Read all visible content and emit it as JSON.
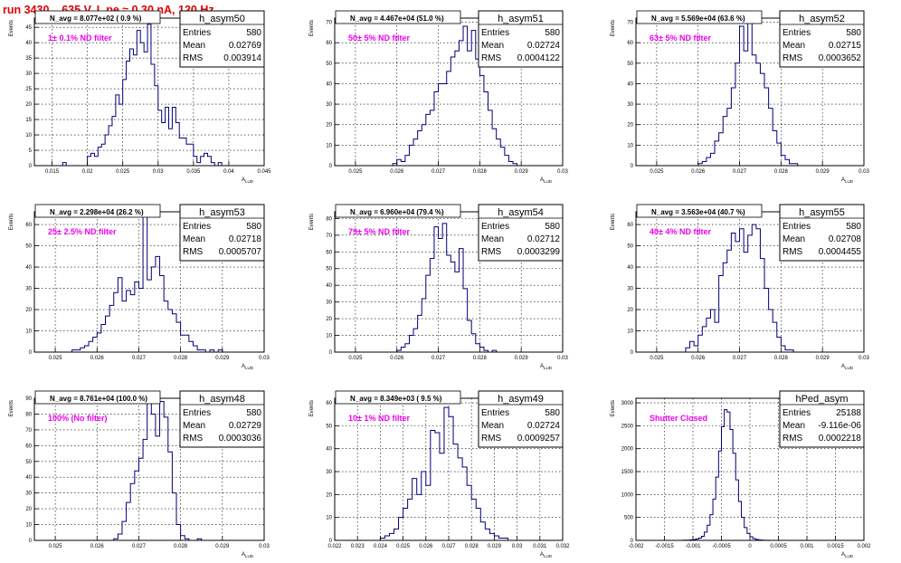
{
  "run_title": "run 3430,   635 V, I_pe ≈ 0.30 nA, 120 Hz",
  "common": {
    "ylabel": "Events",
    "xlabel": "A",
    "xlabel_sub": "LUD",
    "stat_keys": [
      "Entries",
      "Mean",
      "RMS"
    ],
    "hist_color": "#00007a",
    "annotation_color": "#ee00ee",
    "title_color": "#e00000"
  },
  "chart_data": [
    {
      "type": "bar",
      "name": "h_asym50",
      "navg": "N_avg = 8.077e+02 ( 0.9 %)",
      "annotation": "1± 0.1% ND filter",
      "stats": {
        "entries": "580",
        "mean": "0.02769",
        "rms": "0.003914"
      },
      "xlim": [
        0.0125,
        0.045
      ],
      "xticks": [
        0.015,
        0.02,
        0.025,
        0.03,
        0.035,
        0.04,
        0.045
      ],
      "xtick_labels": [
        "0.015",
        "0.02",
        "0.025",
        "0.03",
        "0.035",
        "0.04",
        "0.045"
      ],
      "ylim": [
        0,
        48
      ],
      "yticks": [
        0,
        5,
        10,
        15,
        20,
        25,
        30,
        35,
        40,
        45
      ],
      "bin_edges_start": 0.0165,
      "bin_width": 0.0005,
      "counts": [
        1,
        0,
        0,
        0,
        0,
        0,
        0,
        3,
        4,
        3,
        6,
        7,
        10,
        13,
        16,
        23,
        20,
        28,
        34,
        38,
        36,
        44,
        40,
        37,
        46,
        33,
        26,
        18,
        14,
        19,
        12,
        19,
        14,
        9,
        9,
        7,
        7,
        3,
        1,
        3,
        4,
        3,
        1,
        0,
        1,
        0
      ]
    },
    {
      "type": "bar",
      "name": "h_asym51",
      "navg": "N_avg = 4.467e+04 (51.0 %)",
      "annotation": "50± 5% ND filter",
      "stats": {
        "entries": "580",
        "mean": "0.02724",
        "rms": "0.0004122"
      },
      "xlim": [
        0.0245,
        0.03
      ],
      "xticks": [
        0.025,
        0.026,
        0.027,
        0.028,
        0.029,
        0.03
      ],
      "xtick_labels": [
        "0.025",
        "0.026",
        "0.027",
        "0.028",
        "0.029",
        "0.03"
      ],
      "ylim": [
        0,
        72
      ],
      "yticks": [
        0,
        10,
        20,
        30,
        40,
        50,
        60,
        70
      ],
      "bin_edges_start": 0.0259,
      "bin_width": 0.0001,
      "counts": [
        1,
        3,
        2,
        5,
        10,
        13,
        17,
        20,
        25,
        27,
        36,
        40,
        40,
        46,
        53,
        56,
        61,
        68,
        56,
        66,
        52,
        44,
        36,
        27,
        18,
        13,
        9,
        5,
        2,
        1,
        0
      ]
    },
    {
      "type": "bar",
      "name": "h_asym52",
      "navg": "N_avg = 5.569e+04 (63.6 %)",
      "annotation": "63± 5% ND filter",
      "stats": {
        "entries": "580",
        "mean": "0.02715",
        "rms": "0.0003652"
      },
      "xlim": [
        0.0245,
        0.03
      ],
      "xticks": [
        0.025,
        0.026,
        0.027,
        0.028,
        0.029,
        0.03
      ],
      "xtick_labels": [
        "0.025",
        "0.026",
        "0.027",
        "0.028",
        "0.029",
        "0.03"
      ],
      "ylim": [
        0,
        72
      ],
      "yticks": [
        0,
        10,
        20,
        30,
        40,
        50,
        60,
        70
      ],
      "bin_edges_start": 0.026,
      "bin_width": 0.0001,
      "counts": [
        1,
        2,
        4,
        6,
        12,
        16,
        24,
        28,
        38,
        50,
        68,
        56,
        70,
        54,
        50,
        45,
        38,
        28,
        17,
        11,
        5,
        3,
        1,
        1,
        0,
        0
      ]
    },
    {
      "type": "bar",
      "name": "h_asym53",
      "navg": "N_avg = 2.298e+04 (26.2 %)",
      "annotation": "25± 2.5% ND filter",
      "stats": {
        "entries": "580",
        "mean": "0.02718",
        "rms": "0.0005707"
      },
      "xlim": [
        0.0245,
        0.03
      ],
      "xticks": [
        0.025,
        0.026,
        0.027,
        0.028,
        0.029,
        0.03
      ],
      "xtick_labels": [
        "0.025",
        "0.026",
        "0.027",
        "0.028",
        "0.029",
        "0.03"
      ],
      "ylim": [
        0,
        66
      ],
      "yticks": [
        0,
        10,
        20,
        30,
        40,
        50,
        60
      ],
      "bin_edges_start": 0.0254,
      "bin_width": 0.0001,
      "counts": [
        1,
        1,
        2,
        3,
        5,
        7,
        9,
        13,
        17,
        22,
        28,
        35,
        24,
        29,
        27,
        33,
        30,
        64,
        34,
        40,
        45,
        36,
        24,
        20,
        18,
        14,
        8,
        8,
        5,
        3,
        1,
        1,
        0,
        1,
        0,
        1
      ]
    },
    {
      "type": "bar",
      "name": "h_asym54",
      "navg": "N_avg = 6.960e+04 (79.4 %)",
      "annotation": "79± 5% ND filter",
      "stats": {
        "entries": "580",
        "mean": "0.02712",
        "rms": "0.0003299"
      },
      "xlim": [
        0.0245,
        0.03
      ],
      "xticks": [
        0.025,
        0.026,
        0.027,
        0.028,
        0.029,
        0.03
      ],
      "xtick_labels": [
        "0.025",
        "0.026",
        "0.027",
        "0.028",
        "0.029",
        "0.03"
      ],
      "ylim": [
        0,
        84
      ],
      "yticks": [
        0,
        10,
        20,
        30,
        40,
        50,
        60,
        70,
        80
      ],
      "bin_edges_start": 0.026,
      "bin_width": 0.0001,
      "counts": [
        1,
        3,
        5,
        10,
        14,
        22,
        32,
        46,
        56,
        75,
        68,
        77,
        58,
        54,
        48,
        62,
        38,
        19,
        11,
        5,
        3,
        1,
        0,
        1
      ]
    },
    {
      "type": "bar",
      "name": "h_asym55",
      "navg": "N_avg = 3.563e+04 (40.7 %)",
      "annotation": "40± 4% ND filter",
      "stats": {
        "entries": "580",
        "mean": "0.02708",
        "rms": "0.0004455"
      },
      "xlim": [
        0.0245,
        0.03
      ],
      "xticks": [
        0.025,
        0.026,
        0.027,
        0.028,
        0.029,
        0.03
      ],
      "xtick_labels": [
        "0.025",
        "0.026",
        "0.027",
        "0.028",
        "0.029",
        "0.03"
      ],
      "ylim": [
        0,
        66
      ],
      "yticks": [
        0,
        10,
        20,
        30,
        40,
        50,
        60
      ],
      "bin_edges_start": 0.0257,
      "bin_width": 0.0001,
      "counts": [
        2,
        5,
        3,
        8,
        12,
        16,
        20,
        14,
        36,
        42,
        48,
        56,
        52,
        58,
        47,
        55,
        60,
        58,
        44,
        30,
        20,
        14,
        7,
        3,
        1,
        1,
        0
      ]
    },
    {
      "type": "bar",
      "name": "h_asym48",
      "navg": "N_avg = 8.761e+04 (100.0 %)",
      "annotation": "100% (No filter)",
      "stats": {
        "entries": "580",
        "mean": "0.02729",
        "rms": "0.0003036"
      },
      "xlim": [
        0.0245,
        0.03
      ],
      "xticks": [
        0.025,
        0.026,
        0.027,
        0.028,
        0.029,
        0.03
      ],
      "xtick_labels": [
        "0.025",
        "0.026",
        "0.027",
        "0.028",
        "0.029",
        "0.03"
      ],
      "ylim": [
        0,
        90
      ],
      "yticks": [
        0,
        10,
        20,
        30,
        40,
        50,
        60,
        70,
        80,
        90
      ],
      "bin_edges_start": 0.0264,
      "bin_width": 0.0001,
      "counts": [
        1,
        4,
        12,
        24,
        36,
        44,
        52,
        64,
        88,
        80,
        66,
        88,
        78,
        56,
        30,
        10,
        3,
        1,
        0,
        0,
        1
      ]
    },
    {
      "type": "bar",
      "name": "h_asym49",
      "navg": "N_avg = 8.349e+03 ( 9.5 %)",
      "annotation": "10± 1% ND filter",
      "stats": {
        "entries": "580",
        "mean": "0.02724",
        "rms": "0.0009257"
      },
      "xlim": [
        0.022,
        0.032
      ],
      "xticks": [
        0.022,
        0.023,
        0.024,
        0.025,
        0.026,
        0.027,
        0.028,
        0.029,
        0.03,
        0.031,
        0.032
      ],
      "xtick_labels": [
        "0.022",
        "0.023",
        "0.024",
        "0.025",
        "0.026",
        "0.027",
        "0.028",
        "0.029",
        "0.03",
        "0.031",
        "0.032"
      ],
      "ylim": [
        0,
        62
      ],
      "yticks": [
        0,
        10,
        20,
        30,
        40,
        50,
        60
      ],
      "bin_edges_start": 0.024,
      "bin_width": 0.0002,
      "counts": [
        1,
        2,
        3,
        5,
        10,
        14,
        18,
        27,
        20,
        30,
        24,
        48,
        47,
        38,
        58,
        54,
        42,
        36,
        32,
        24,
        18,
        14,
        8,
        5,
        3,
        2,
        1,
        1,
        0
      ]
    },
    {
      "type": "bar",
      "name": "hPed_asym",
      "navg": "",
      "annotation": "Shutter Closed",
      "stats": {
        "entries": "25188",
        "mean": "-9.116e-06",
        "rms": "0.0002218"
      },
      "xlim": [
        -0.002,
        0.002
      ],
      "xticks": [
        -0.002,
        -0.0015,
        -0.001,
        -0.0005,
        0,
        0.0005,
        0.001,
        0.0015,
        0.002
      ],
      "xtick_labels": [
        "-0.002",
        "-0.0015",
        "-0.001",
        "-0.0005",
        "0",
        "0.0005",
        "0.001",
        "0.0015",
        "0.002"
      ],
      "ylim": [
        0,
        3100
      ],
      "yticks": [
        0,
        500,
        1000,
        1500,
        2000,
        2500,
        3000
      ],
      "bin_edges_start": -0.0012,
      "bin_width": 5e-05,
      "counts": [
        2,
        4,
        6,
        10,
        18,
        30,
        50,
        90,
        180,
        330,
        560,
        900,
        1380,
        1950,
        2480,
        2850,
        2800,
        2420,
        1900,
        1320,
        850,
        500,
        280,
        150,
        80,
        40,
        20,
        10,
        5,
        3,
        2,
        1
      ]
    }
  ]
}
